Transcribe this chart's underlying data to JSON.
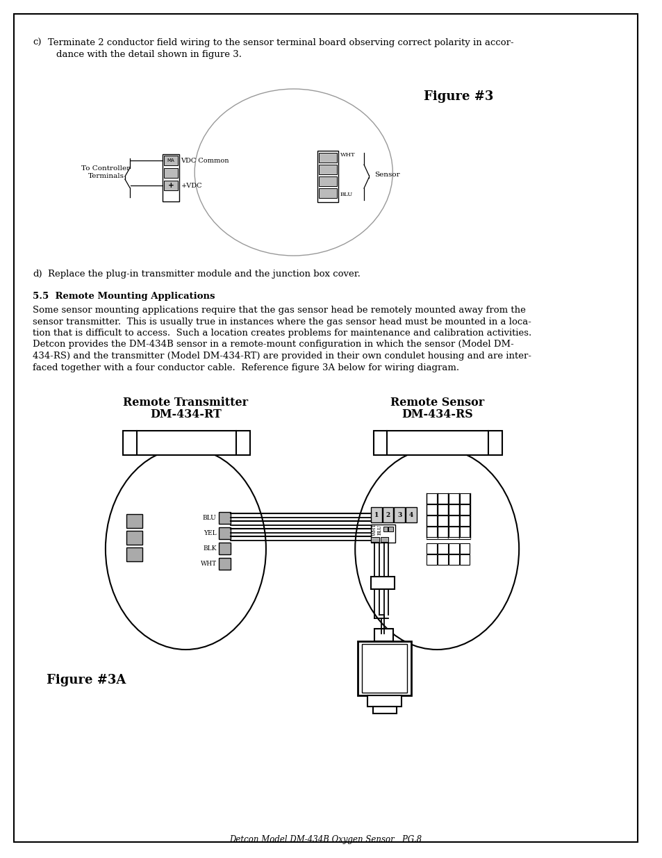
{
  "background_color": "#ffffff",
  "border_color": "#000000",
  "page_width": 9.54,
  "page_height": 12.35,
  "text_color": "#000000",
  "fig3_title": "Figure #3",
  "remote_tx_label1": "Remote Transmitter",
  "remote_tx_label2": "DM-434-RT",
  "remote_sx_label1": "Remote Sensor",
  "remote_sx_label2": "DM-434-RS",
  "fig3a_label": "Figure #3A",
  "footer_text": "Detcon Model DM-434B Oxygen Sensor   PG.8"
}
